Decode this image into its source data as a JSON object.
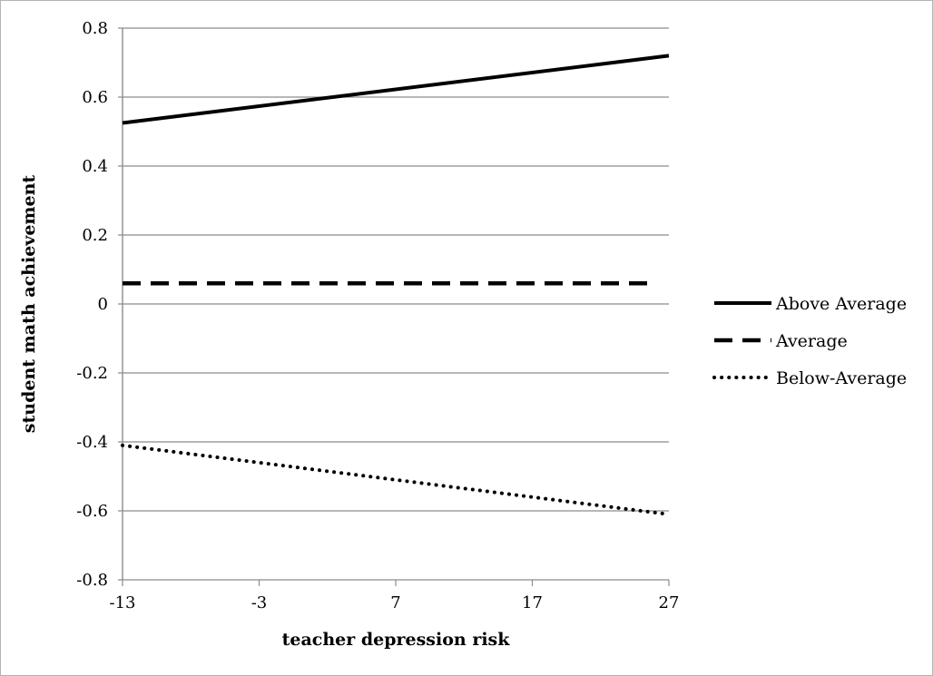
{
  "chart_data": {
    "type": "line",
    "title": "",
    "xlabel": "teacher depression risk",
    "ylabel": "student math achievement",
    "xlim": [
      -13,
      27
    ],
    "ylim": [
      -0.8,
      0.8
    ],
    "x_ticks": [
      "-13",
      "-3",
      "7",
      "17",
      "27"
    ],
    "y_ticks": [
      "0.8",
      "0.6",
      "0.4",
      "0.2",
      "0",
      "-0.2",
      "-0.4",
      "-0.6",
      "-0.8"
    ],
    "grid": "horizontal",
    "legend_position": "right",
    "series": [
      {
        "name": "Above Average",
        "style": "solid",
        "color": "#000000",
        "x": [
          -13,
          27
        ],
        "y": [
          0.525,
          0.72
        ]
      },
      {
        "name": "Average",
        "style": "dashed",
        "color": "#000000",
        "x": [
          -13,
          26
        ],
        "y": [
          0.06,
          0.06
        ]
      },
      {
        "name": "Below-Average",
        "style": "dotted",
        "color": "#000000",
        "x": [
          -13,
          27
        ],
        "y": [
          -0.41,
          -0.61
        ]
      }
    ]
  }
}
